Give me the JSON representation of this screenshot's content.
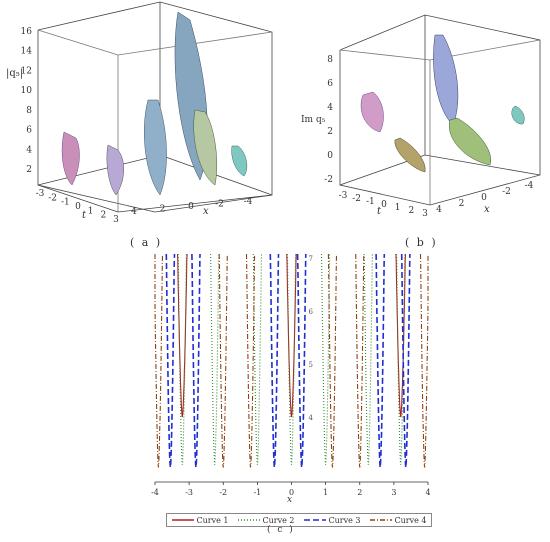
{
  "panel_a": {
    "caption": "( a )",
    "z_label": "|q₅|",
    "x_label": "x",
    "t_label": "t",
    "z_ticks": [
      "2",
      "4",
      "6",
      "8",
      "10",
      "12",
      "14",
      "16"
    ],
    "t_ticks": [
      "-3",
      "-2",
      "-1",
      "0",
      "1",
      "2",
      "3"
    ],
    "x_ticks": [
      "4",
      "2",
      "0",
      "-2",
      "-4"
    ],
    "colors": {
      "pink": "#c98fb8",
      "teal": "#6fb1a8",
      "purple": "#9c83c3",
      "olive": "#aab36a"
    }
  },
  "panel_b": {
    "caption": "( b )",
    "z_label": "Im q₅",
    "x_label": "x",
    "t_label": "t",
    "z_ticks": [
      "-2",
      "0",
      "2",
      "4",
      "6",
      "8"
    ],
    "t_ticks": [
      "-3",
      "-2",
      "-1",
      "0",
      "1",
      "2",
      "3"
    ],
    "x_ticks": [
      "4",
      "2",
      "0",
      "-2",
      "-4"
    ]
  },
  "panel_c": {
    "caption": "( c )",
    "x_label": "x",
    "x_ticks": [
      "-4",
      "-3",
      "-2",
      "-1",
      "0",
      "1",
      "2",
      "3",
      "4"
    ],
    "y_ticks": [
      "4",
      "5",
      "6",
      "7"
    ]
  },
  "legend": [
    {
      "label": "Curve 1",
      "color": "#b22222",
      "dash": ""
    },
    {
      "label": "Curve 2",
      "color": "#2e8b2e",
      "dash": "1,2"
    },
    {
      "label": "Curve 3",
      "color": "#1f2fd0",
      "dash": "6,3"
    },
    {
      "label": "Curve 4",
      "color": "#8b4513",
      "dash": "5,2,1,2"
    }
  ],
  "chart_data": [
    {
      "type": "surface3d",
      "panel": "a",
      "zlabel": "|q₅|",
      "xlabel": "x",
      "ylabel": "t",
      "xlim": [
        -4,
        4
      ],
      "ylim": [
        -3,
        3
      ],
      "zlim": [
        2,
        16
      ]
    },
    {
      "type": "surface3d",
      "panel": "b",
      "zlabel": "Im q₅",
      "xlabel": "x",
      "ylabel": "t",
      "xlim": [
        -4,
        4
      ],
      "ylim": [
        -3,
        3
      ],
      "zlim": [
        -2,
        8
      ]
    },
    {
      "type": "line",
      "panel": "c",
      "xlabel": "x",
      "xlim": [
        -4,
        4
      ],
      "ylim": [
        3,
        7
      ],
      "series": [
        {
          "name": "Curve 1",
          "minima_x": [
            -3.2,
            0.0,
            3.2
          ],
          "min_y": 4.0
        },
        {
          "name": "Curve 2",
          "minima_x": [
            -3.2,
            -2.25,
            -1.0,
            0.0,
            1.0,
            2.25,
            3.2
          ],
          "min_y": 3.1
        },
        {
          "name": "Curve 3",
          "minima_x": [
            -3.55,
            -2.8,
            -0.5,
            0.3,
            2.6,
            3.35
          ],
          "min_y": 3.05
        },
        {
          "name": "Curve 4",
          "minima_x": [
            -3.9,
            -2.0,
            -1.2,
            1.2,
            2.0,
            3.9
          ],
          "min_y": 3.05
        }
      ]
    }
  ]
}
